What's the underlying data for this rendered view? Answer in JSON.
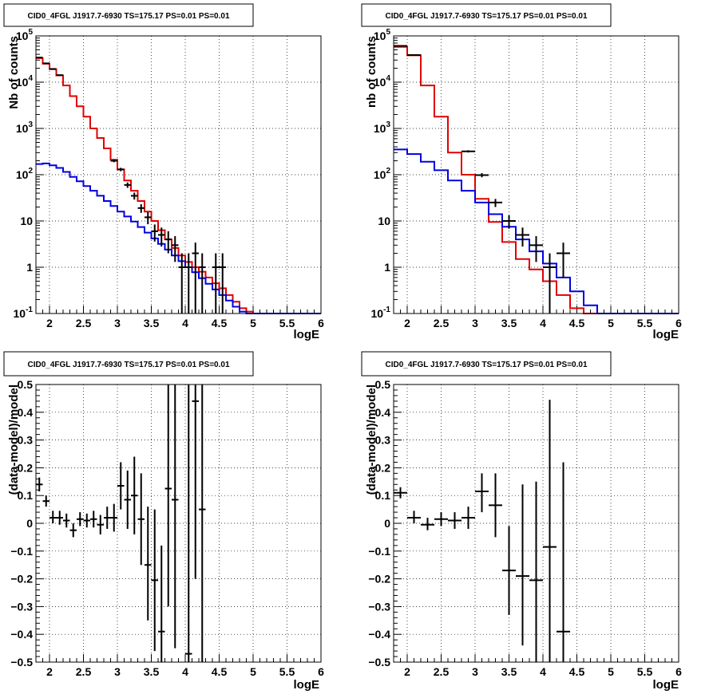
{
  "chart_data": [
    {
      "id": "p1",
      "type": "line",
      "title": "CID0_4FGL J1917.7-6930 TS=175.17 PS=0.01 PS=0.01",
      "xlabel": "logE",
      "ylabel": "Nb of counts",
      "log_y": true,
      "xlim": [
        1.8,
        6.0
      ],
      "ylim": [
        0.1,
        100000
      ],
      "grid": true,
      "x_ticks": [
        2,
        2.5,
        3,
        3.5,
        4,
        4.5,
        5,
        5.5,
        6
      ],
      "x_tick_labels": [
        "2",
        "2.5",
        "3",
        "3.5",
        "4",
        "4.5",
        "5",
        "5.5",
        "6"
      ],
      "y_ticks": [
        0.1,
        1,
        10,
        100,
        1000,
        10000,
        100000
      ],
      "y_tick_labels": [
        {
          "base": "10",
          "exp": "-1"
        },
        {
          "base": "1",
          "exp": ""
        },
        {
          "base": "10",
          "exp": ""
        },
        {
          "base": "10",
          "exp": "2"
        },
        {
          "base": "10",
          "exp": "3"
        },
        {
          "base": "10",
          "exp": "4"
        },
        {
          "base": "10",
          "exp": "5"
        }
      ],
      "series": [
        {
          "color": "#e00000",
          "style": "step",
          "bins": [
            1.8,
            1.9,
            2.0,
            2.1,
            2.2,
            2.3,
            2.4,
            2.5,
            2.6,
            2.7,
            2.8,
            2.9,
            3.0,
            3.1,
            3.2,
            3.3,
            3.4,
            3.5,
            3.6,
            3.7,
            3.8,
            3.9,
            4.0,
            4.1,
            4.2,
            4.3,
            4.4,
            4.5,
            4.6,
            4.7,
            4.8,
            4.9,
            5.0,
            6.0
          ],
          "values": [
            33000,
            25000,
            19000,
            14000,
            8500,
            5000,
            3000,
            1800,
            1000,
            620,
            370,
            210,
            130,
            75,
            45,
            27,
            16,
            10,
            6.3,
            4.0,
            2.6,
            1.8,
            1.3,
            1.0,
            0.8,
            0.6,
            0.45,
            0.35,
            0.25,
            0.18,
            0.13,
            0.11,
            0.1
          ]
        },
        {
          "color": "#0000e0",
          "style": "step",
          "bins": [
            1.8,
            1.9,
            2.0,
            2.1,
            2.2,
            2.3,
            2.4,
            2.5,
            2.6,
            2.7,
            2.8,
            2.9,
            3.0,
            3.1,
            3.2,
            3.3,
            3.4,
            3.5,
            3.6,
            3.7,
            3.8,
            3.9,
            4.0,
            4.1,
            4.2,
            4.3,
            4.4,
            4.5,
            4.6,
            4.7,
            4.8,
            4.9,
            5.0,
            6.0
          ],
          "values": [
            170,
            175,
            160,
            140,
            115,
            90,
            72,
            57,
            45,
            35,
            27,
            21,
            16,
            12.5,
            9.7,
            7.4,
            5.6,
            4.2,
            3.2,
            2.4,
            1.8,
            1.35,
            1.0,
            0.78,
            0.58,
            0.44,
            0.33,
            0.25,
            0.19,
            0.14,
            0.11,
            0.1,
            0.1
          ]
        }
      ],
      "points": [
        {
          "x": 1.85,
          "y": 34000,
          "xerr": 0.05,
          "ylo": 33800,
          "yhi": 34200
        },
        {
          "x": 1.95,
          "y": 25500,
          "xerr": 0.05,
          "ylo": 25300,
          "yhi": 25700
        },
        {
          "x": 2.05,
          "y": 19300,
          "xerr": 0.05,
          "ylo": 19100,
          "yhi": 19500
        },
        {
          "x": 2.15,
          "y": 14200,
          "xerr": 0.05,
          "ylo": 14000,
          "yhi": 14400
        },
        {
          "x": 2.95,
          "y": 200,
          "xerr": 0.05,
          "ylo": 186,
          "yhi": 214
        },
        {
          "x": 3.05,
          "y": 130,
          "xerr": 0.05,
          "ylo": 119,
          "yhi": 141
        },
        {
          "x": 3.15,
          "y": 60,
          "xerr": 0.05,
          "ylo": 52,
          "yhi": 68
        },
        {
          "x": 3.25,
          "y": 35,
          "xerr": 0.05,
          "ylo": 29,
          "yhi": 41
        },
        {
          "x": 3.35,
          "y": 19,
          "xerr": 0.05,
          "ylo": 15,
          "yhi": 23
        },
        {
          "x": 3.45,
          "y": 12,
          "xerr": 0.05,
          "ylo": 8.5,
          "yhi": 15.5
        },
        {
          "x": 3.55,
          "y": 6,
          "xerr": 0.05,
          "ylo": 3.6,
          "yhi": 8.4
        },
        {
          "x": 3.65,
          "y": 5,
          "xerr": 0.05,
          "ylo": 2.8,
          "yhi": 7.2
        },
        {
          "x": 3.75,
          "y": 4,
          "xerr": 0.05,
          "ylo": 2.0,
          "yhi": 6.0
        },
        {
          "x": 3.85,
          "y": 3,
          "xerr": 0.05,
          "ylo": 1.3,
          "yhi": 4.7
        },
        {
          "x": 3.95,
          "y": 1,
          "xerr": 0.05,
          "ylo": 0.1,
          "yhi": 2.0
        },
        {
          "x": 4.05,
          "y": 1,
          "xerr": 0.05,
          "ylo": 0.1,
          "yhi": 2.0
        },
        {
          "x": 4.15,
          "y": 2,
          "xerr": 0.05,
          "ylo": 0.1,
          "yhi": 3.4
        },
        {
          "x": 4.25,
          "y": 1,
          "xerr": 0.05,
          "ylo": 0.1,
          "yhi": 2.0
        },
        {
          "x": 4.45,
          "y": 1,
          "xerr": 0.05,
          "ylo": 0.1,
          "yhi": 2.0
        },
        {
          "x": 4.55,
          "y": 1,
          "xerr": 0.05,
          "ylo": 0.1,
          "yhi": 2.0
        }
      ]
    },
    {
      "id": "p2",
      "type": "line",
      "title": "CID0_4FGL J1917.7-6930 TS=175.17 PS=0.01 PS=0.01",
      "xlabel": "logE",
      "ylabel": "nb of counts",
      "log_y": true,
      "xlim": [
        1.8,
        6.0
      ],
      "ylim": [
        0.1,
        100000
      ],
      "grid": true,
      "x_ticks": [
        2,
        2.5,
        3,
        3.5,
        4,
        4.5,
        5,
        5.5,
        6
      ],
      "x_tick_labels": [
        "2",
        "2.5",
        "3",
        "3.5",
        "4",
        "4.5",
        "5",
        "5.5",
        "6"
      ],
      "y_ticks": [
        0.1,
        1,
        10,
        100,
        1000,
        10000,
        100000
      ],
      "y_tick_labels": [
        {
          "base": "10",
          "exp": "-1"
        },
        {
          "base": "1",
          "exp": ""
        },
        {
          "base": "10",
          "exp": ""
        },
        {
          "base": "10",
          "exp": "2"
        },
        {
          "base": "10",
          "exp": "3"
        },
        {
          "base": "10",
          "exp": "4"
        },
        {
          "base": "10",
          "exp": "5"
        }
      ],
      "series": [
        {
          "color": "#e00000",
          "style": "step",
          "bins": [
            1.8,
            2.0,
            2.2,
            2.4,
            2.6,
            2.8,
            3.0,
            3.2,
            3.4,
            3.6,
            3.8,
            4.0,
            4.2,
            4.4,
            4.6,
            4.8,
            5.0,
            6.0
          ],
          "values": [
            58000,
            38000,
            8500,
            1800,
            300,
            100,
            30,
            9.5,
            3.5,
            1.5,
            0.9,
            0.5,
            0.25,
            0.13,
            0.1,
            0.1,
            0.1
          ]
        },
        {
          "color": "#0000e0",
          "style": "step",
          "bins": [
            1.8,
            2.0,
            2.2,
            2.4,
            2.6,
            2.8,
            3.0,
            3.2,
            3.4,
            3.6,
            3.8,
            4.0,
            4.2,
            4.4,
            4.6,
            4.8,
            5.0,
            6.0
          ],
          "values": [
            350,
            280,
            190,
            125,
            75,
            45,
            25,
            14,
            7.5,
            4.0,
            2.2,
            1.2,
            0.6,
            0.3,
            0.15,
            0.1,
            0.1
          ]
        }
      ],
      "points": [
        {
          "x": 1.9,
          "y": 61000,
          "xerr": 0.1,
          "ylo": 60500,
          "yhi": 61500
        },
        {
          "x": 2.1,
          "y": 38500,
          "xerr": 0.1,
          "ylo": 38100,
          "yhi": 38900
        },
        {
          "x": 2.9,
          "y": 320,
          "xerr": 0.1,
          "ylo": 302,
          "yhi": 338
        },
        {
          "x": 3.1,
          "y": 98,
          "xerr": 0.1,
          "ylo": 88,
          "yhi": 108
        },
        {
          "x": 3.3,
          "y": 25,
          "xerr": 0.1,
          "ylo": 20,
          "yhi": 30
        },
        {
          "x": 3.5,
          "y": 10,
          "xerr": 0.1,
          "ylo": 6.8,
          "yhi": 13.2
        },
        {
          "x": 3.7,
          "y": 5,
          "xerr": 0.1,
          "ylo": 2.8,
          "yhi": 7.2
        },
        {
          "x": 3.9,
          "y": 3,
          "xerr": 0.1,
          "ylo": 1.3,
          "yhi": 4.7
        },
        {
          "x": 4.1,
          "y": 1,
          "xerr": 0.1,
          "ylo": 0.1,
          "yhi": 2.0
        },
        {
          "x": 4.3,
          "y": 2,
          "xerr": 0.1,
          "ylo": 0.6,
          "yhi": 3.4
        }
      ]
    },
    {
      "id": "p3",
      "type": "scatter",
      "title": "CID0_4FGL J1917.7-6930 TS=175.17 PS=0.01 PS=0.01",
      "xlabel": "logE",
      "ylabel": "(data-model)/model",
      "log_y": false,
      "xlim": [
        1.8,
        6.0
      ],
      "ylim": [
        -0.5,
        0.5
      ],
      "grid": true,
      "x_ticks": [
        2,
        2.5,
        3,
        3.5,
        4,
        4.5,
        5,
        5.5,
        6
      ],
      "x_tick_labels": [
        "2",
        "2.5",
        "3",
        "3.5",
        "4",
        "4.5",
        "5",
        "5.5",
        "6"
      ],
      "y_ticks": [
        -0.5,
        -0.4,
        -0.3,
        -0.2,
        -0.1,
        0,
        0.1,
        0.2,
        0.3,
        0.4,
        0.5
      ],
      "y_tick_labels": [
        "−0.5",
        "−0.4",
        "−0.3",
        "−0.2",
        "−0.1",
        "0",
        "0.1",
        "0.2",
        "0.3",
        "0.4",
        "0.5"
      ],
      "points": [
        {
          "x": 1.85,
          "y": 0.14,
          "xerr": 0.05,
          "ylo": 0.115,
          "yhi": 0.165
        },
        {
          "x": 1.95,
          "y": 0.08,
          "xerr": 0.05,
          "ylo": 0.06,
          "yhi": 0.1
        },
        {
          "x": 2.05,
          "y": 0.02,
          "xerr": 0.05,
          "ylo": 0.0,
          "yhi": 0.045
        },
        {
          "x": 2.15,
          "y": 0.02,
          "xerr": 0.05,
          "ylo": -0.005,
          "yhi": 0.045
        },
        {
          "x": 2.25,
          "y": 0.01,
          "xerr": 0.05,
          "ylo": -0.015,
          "yhi": 0.035
        },
        {
          "x": 2.35,
          "y": -0.025,
          "xerr": 0.05,
          "ylo": -0.05,
          "yhi": 0.0
        },
        {
          "x": 2.45,
          "y": 0.015,
          "xerr": 0.05,
          "ylo": -0.01,
          "yhi": 0.04
        },
        {
          "x": 2.55,
          "y": 0.01,
          "xerr": 0.05,
          "ylo": -0.015,
          "yhi": 0.035
        },
        {
          "x": 2.65,
          "y": 0.015,
          "xerr": 0.05,
          "ylo": -0.015,
          "yhi": 0.045
        },
        {
          "x": 2.75,
          "y": -0.005,
          "xerr": 0.05,
          "ylo": -0.04,
          "yhi": 0.03
        },
        {
          "x": 2.85,
          "y": 0.02,
          "xerr": 0.05,
          "ylo": -0.02,
          "yhi": 0.06
        },
        {
          "x": 2.95,
          "y": 0.02,
          "xerr": 0.05,
          "ylo": -0.03,
          "yhi": 0.07
        },
        {
          "x": 3.05,
          "y": 0.135,
          "xerr": 0.05,
          "ylo": 0.05,
          "yhi": 0.22
        },
        {
          "x": 3.15,
          "y": 0.085,
          "xerr": 0.05,
          "ylo": -0.02,
          "yhi": 0.19
        },
        {
          "x": 3.25,
          "y": 0.1,
          "xerr": 0.05,
          "ylo": -0.04,
          "yhi": 0.24
        },
        {
          "x": 3.35,
          "y": 0.015,
          "xerr": 0.05,
          "ylo": -0.15,
          "yhi": 0.18
        },
        {
          "x": 3.45,
          "y": -0.15,
          "xerr": 0.05,
          "ylo": -0.35,
          "yhi": 0.06
        },
        {
          "x": 3.55,
          "y": -0.205,
          "xerr": 0.05,
          "ylo": -0.46,
          "yhi": 0.05
        },
        {
          "x": 3.65,
          "y": -0.39,
          "xerr": 0.05,
          "ylo": -0.5,
          "yhi": -0.08
        },
        {
          "x": 3.75,
          "y": 0.125,
          "xerr": 0.05,
          "ylo": -0.3,
          "yhi": 0.5
        },
        {
          "x": 3.85,
          "y": 0.085,
          "xerr": 0.05,
          "ylo": -0.45,
          "yhi": 0.5
        },
        {
          "x": 4.05,
          "y": -0.47,
          "xerr": 0.05,
          "ylo": -0.5,
          "yhi": 0.5
        },
        {
          "x": 4.15,
          "y": 0.44,
          "xerr": 0.05,
          "ylo": -0.2,
          "yhi": 0.5
        },
        {
          "x": 4.25,
          "y": 0.05,
          "xerr": 0.05,
          "ylo": -0.5,
          "yhi": 0.5
        }
      ]
    },
    {
      "id": "p4",
      "type": "scatter",
      "title": "CID0_4FGL J1917.7-6930 TS=175.17 PS=0.01 PS=0.01",
      "xlabel": "logE",
      "ylabel": "(data-model)/model",
      "log_y": false,
      "xlim": [
        1.8,
        6.0
      ],
      "ylim": [
        -0.5,
        0.5
      ],
      "grid": true,
      "x_ticks": [
        2,
        2.5,
        3,
        3.5,
        4,
        4.5,
        5,
        5.5,
        6
      ],
      "x_tick_labels": [
        "2",
        "2.5",
        "3",
        "3.5",
        "4",
        "4.5",
        "5",
        "5.5",
        "6"
      ],
      "y_ticks": [
        -0.5,
        -0.4,
        -0.3,
        -0.2,
        -0.1,
        0,
        0.1,
        0.2,
        0.3,
        0.4,
        0.5
      ],
      "y_tick_labels": [
        "−0.5",
        "−0.4",
        "−0.3",
        "−0.2",
        "−0.1",
        "0",
        "0.1",
        "0.2",
        "0.3",
        "0.4",
        "0.5"
      ],
      "points": [
        {
          "x": 1.9,
          "y": 0.11,
          "xerr": 0.1,
          "ylo": 0.09,
          "yhi": 0.13
        },
        {
          "x": 2.1,
          "y": 0.02,
          "xerr": 0.1,
          "ylo": 0.0,
          "yhi": 0.045
        },
        {
          "x": 2.3,
          "y": -0.005,
          "xerr": 0.1,
          "ylo": -0.025,
          "yhi": 0.02
        },
        {
          "x": 2.5,
          "y": 0.015,
          "xerr": 0.1,
          "ylo": -0.01,
          "yhi": 0.04
        },
        {
          "x": 2.7,
          "y": 0.01,
          "xerr": 0.1,
          "ylo": -0.02,
          "yhi": 0.04
        },
        {
          "x": 2.9,
          "y": 0.02,
          "xerr": 0.1,
          "ylo": -0.02,
          "yhi": 0.06
        },
        {
          "x": 3.1,
          "y": 0.115,
          "xerr": 0.1,
          "ylo": 0.04,
          "yhi": 0.18
        },
        {
          "x": 3.3,
          "y": 0.065,
          "xerr": 0.1,
          "ylo": -0.05,
          "yhi": 0.18
        },
        {
          "x": 3.5,
          "y": -0.17,
          "xerr": 0.1,
          "ylo": -0.33,
          "yhi": -0.01
        },
        {
          "x": 3.7,
          "y": -0.19,
          "xerr": 0.1,
          "ylo": -0.44,
          "yhi": 0.14
        },
        {
          "x": 3.9,
          "y": -0.205,
          "xerr": 0.1,
          "ylo": -0.5,
          "yhi": 0.15
        },
        {
          "x": 4.1,
          "y": -0.085,
          "xerr": 0.1,
          "ylo": -0.5,
          "yhi": 0.445
        },
        {
          "x": 4.3,
          "y": -0.39,
          "xerr": 0.1,
          "ylo": -0.5,
          "yhi": 0.22
        }
      ]
    }
  ]
}
